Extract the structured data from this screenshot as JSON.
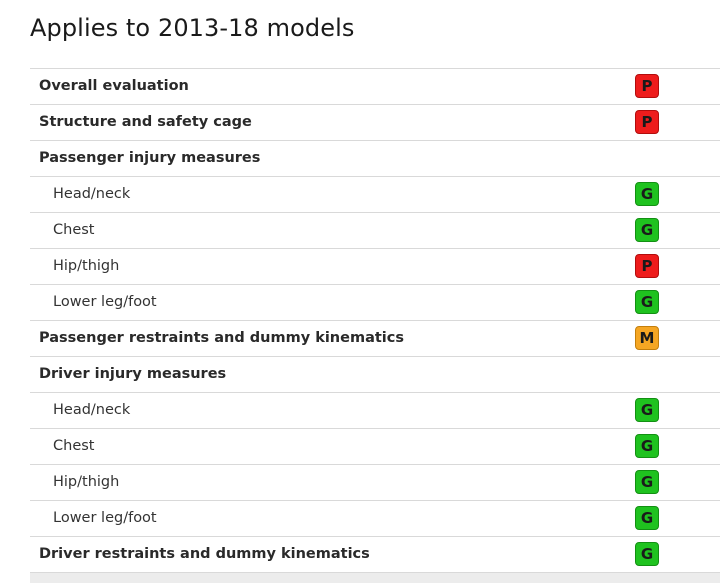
{
  "title": "Applies to 2013-18 models",
  "rating_colors": {
    "P": "#ee1c1c",
    "G": "#1fc21f",
    "M": "#f5a623"
  },
  "rows": [
    {
      "label": "Overall evaluation",
      "level": "main",
      "rating": "P"
    },
    {
      "label": "Structure and safety cage",
      "level": "main",
      "rating": "P"
    },
    {
      "label": "Passenger injury measures",
      "level": "main",
      "rating": ""
    },
    {
      "label": "Head/neck",
      "level": "sub",
      "rating": "G"
    },
    {
      "label": "Chest",
      "level": "sub",
      "rating": "G"
    },
    {
      "label": "Hip/thigh",
      "level": "sub",
      "rating": "P"
    },
    {
      "label": "Lower leg/foot",
      "level": "sub",
      "rating": "G"
    },
    {
      "label": "Passenger restraints and dummy kinematics",
      "level": "main",
      "rating": "M"
    },
    {
      "label": "Driver injury measures",
      "level": "main",
      "rating": ""
    },
    {
      "label": "Head/neck",
      "level": "sub",
      "rating": "G"
    },
    {
      "label": "Chest",
      "level": "sub",
      "rating": "G"
    },
    {
      "label": "Hip/thigh",
      "level": "sub",
      "rating": "G"
    },
    {
      "label": "Lower leg/foot",
      "level": "sub",
      "rating": "G"
    },
    {
      "label": "Driver restraints and dummy kinematics",
      "level": "main",
      "rating": "G"
    }
  ]
}
